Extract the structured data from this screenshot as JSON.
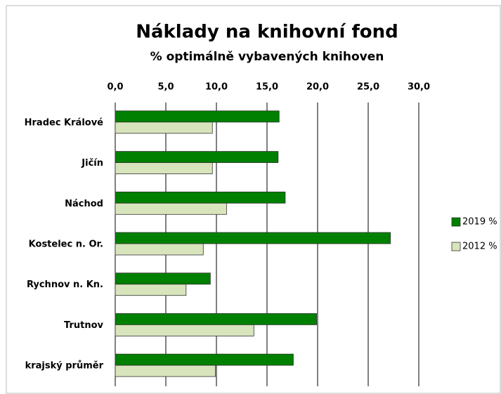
{
  "chart_data": {
    "type": "bar",
    "orientation": "horizontal",
    "title": "Náklady na knihovní fond",
    "subtitle": "% optimálně vybavených knihoven",
    "categories": [
      "Hradec Králové",
      "Jičín",
      "Náchod",
      "Kostelec n. Or.",
      "Rychnov n. Kn.",
      "Trutnov",
      "krajský průměr"
    ],
    "series": [
      {
        "name": "2019 %",
        "color": "#008000",
        "values": [
          16.2,
          16.1,
          16.8,
          27.2,
          9.4,
          19.9,
          17.6
        ]
      },
      {
        "name": "2012 %",
        "color": "#d8e4bc",
        "values": [
          9.6,
          9.6,
          11.0,
          8.7,
          7.0,
          13.7,
          9.9
        ]
      }
    ],
    "xlim": [
      0,
      30
    ],
    "xticks": [
      {
        "value": 0,
        "label": "0,0"
      },
      {
        "value": 5,
        "label": "5,0"
      },
      {
        "value": 10,
        "label": "10,0"
      },
      {
        "value": 15,
        "label": "15,0"
      },
      {
        "value": 20,
        "label": "20,0"
      },
      {
        "value": 25,
        "label": "25,0"
      },
      {
        "value": 30,
        "label": "30,0"
      }
    ],
    "grid": true,
    "legend": "right"
  }
}
